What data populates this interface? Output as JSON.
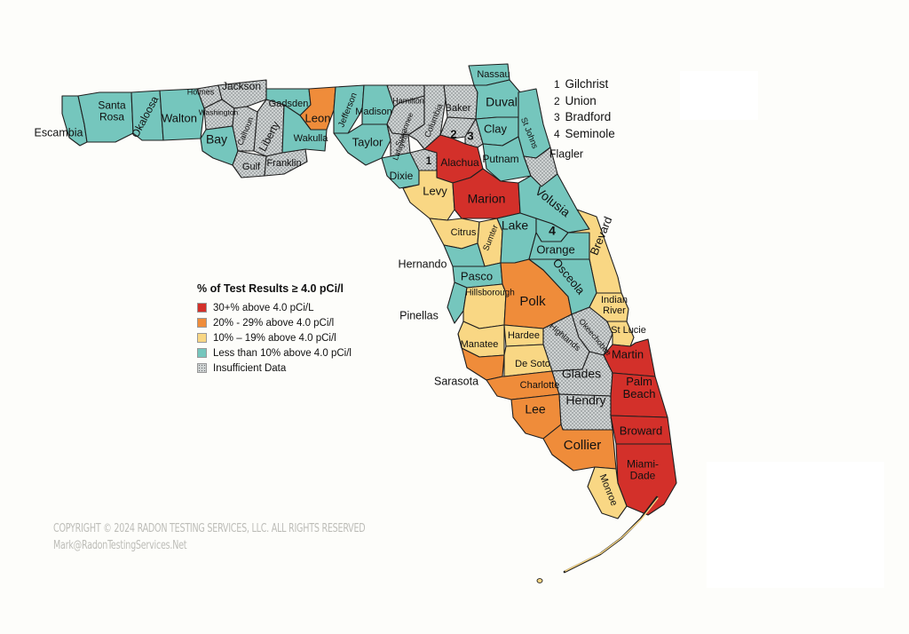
{
  "colors": {
    "high": "#d3302a",
    "medium": "#ef8c3a",
    "low": "#f9d784",
    "minimal": "#75c6bd",
    "insufficient": "#cfd3d3"
  },
  "legend": {
    "title": "% of Test Results ≥ 4.0 pCi/l",
    "items": [
      {
        "label": "30+% above 4.0 pCi/L",
        "color": "#d3302a",
        "pattern": false
      },
      {
        "label": "20% - 29% above 4.0 pCi/l",
        "color": "#ef8c3a",
        "pattern": false
      },
      {
        "label": "10% – 19% above 4.0 pCi/l",
        "color": "#f9d784",
        "pattern": false
      },
      {
        "label": "Less than 10% above 4.0 pCi/l",
        "color": "#75c6bd",
        "pattern": false
      },
      {
        "label": "Insufficient Data",
        "color": "#cfd3d3",
        "pattern": true
      }
    ]
  },
  "number_key": [
    {
      "num": "1",
      "name": "Gilchrist"
    },
    {
      "num": "2",
      "name": "Union"
    },
    {
      "num": "3",
      "name": "Bradford"
    },
    {
      "num": "4",
      "name": "Seminole"
    }
  ],
  "counties": [
    {
      "name": "Escambia",
      "cat": "minimal"
    },
    {
      "name": "Santa Rosa",
      "cat": "minimal"
    },
    {
      "name": "Okaloosa",
      "cat": "minimal"
    },
    {
      "name": "Walton",
      "cat": "minimal"
    },
    {
      "name": "Holmes",
      "cat": "insufficient"
    },
    {
      "name": "Washington",
      "cat": "insufficient"
    },
    {
      "name": "Jackson",
      "cat": "insufficient"
    },
    {
      "name": "Bay",
      "cat": "minimal"
    },
    {
      "name": "Calhoun",
      "cat": "insufficient"
    },
    {
      "name": "Liberty",
      "cat": "insufficient"
    },
    {
      "name": "Gulf",
      "cat": "insufficient"
    },
    {
      "name": "Franklin",
      "cat": "insufficient"
    },
    {
      "name": "Gadsden",
      "cat": "minimal"
    },
    {
      "name": "Leon",
      "cat": "medium"
    },
    {
      "name": "Wakulla",
      "cat": "minimal"
    },
    {
      "name": "Jefferson",
      "cat": "minimal"
    },
    {
      "name": "Madison",
      "cat": "minimal"
    },
    {
      "name": "Taylor",
      "cat": "minimal"
    },
    {
      "name": "Hamilton",
      "cat": "insufficient"
    },
    {
      "name": "Suwannee",
      "cat": "insufficient"
    },
    {
      "name": "Lafayette",
      "cat": "insufficient"
    },
    {
      "name": "Columbia",
      "cat": "insufficient"
    },
    {
      "name": "Baker",
      "cat": "insufficient"
    },
    {
      "name": "Nassau",
      "cat": "minimal"
    },
    {
      "name": "Duval",
      "cat": "minimal"
    },
    {
      "name": "Clay",
      "cat": "minimal"
    },
    {
      "name": "St Johns",
      "cat": "minimal"
    },
    {
      "name": "Putnam",
      "cat": "minimal"
    },
    {
      "name": "Flagler",
      "cat": "insufficient"
    },
    {
      "name": "Dixie",
      "cat": "minimal"
    },
    {
      "name": "Gilchrist",
      "cat": "insufficient"
    },
    {
      "name": "Union",
      "cat": "insufficient"
    },
    {
      "name": "Bradford",
      "cat": "insufficient"
    },
    {
      "name": "Alachua",
      "cat": "high"
    },
    {
      "name": "Levy",
      "cat": "low"
    },
    {
      "name": "Marion",
      "cat": "high"
    },
    {
      "name": "Volusia",
      "cat": "minimal"
    },
    {
      "name": "Citrus",
      "cat": "low"
    },
    {
      "name": "Sumter",
      "cat": "low"
    },
    {
      "name": "Lake",
      "cat": "minimal"
    },
    {
      "name": "Seminole",
      "cat": "minimal"
    },
    {
      "name": "Orange",
      "cat": "minimal"
    },
    {
      "name": "Brevard",
      "cat": "low"
    },
    {
      "name": "Hernando",
      "cat": "minimal"
    },
    {
      "name": "Pasco",
      "cat": "minimal"
    },
    {
      "name": "Pinellas",
      "cat": "minimal"
    },
    {
      "name": "Hillsborough",
      "cat": "low"
    },
    {
      "name": "Polk",
      "cat": "medium"
    },
    {
      "name": "Osceola",
      "cat": "minimal"
    },
    {
      "name": "Indian River",
      "cat": "low"
    },
    {
      "name": "Okeechobee",
      "cat": "insufficient"
    },
    {
      "name": "St Lucie",
      "cat": "low"
    },
    {
      "name": "Manatee",
      "cat": "low"
    },
    {
      "name": "Hardee",
      "cat": "low"
    },
    {
      "name": "Highlands",
      "cat": "insufficient"
    },
    {
      "name": "Sarasota",
      "cat": "medium"
    },
    {
      "name": "De Soto",
      "cat": "low"
    },
    {
      "name": "Charlotte",
      "cat": "medium"
    },
    {
      "name": "Glades",
      "cat": "insufficient"
    },
    {
      "name": "Martin",
      "cat": "high"
    },
    {
      "name": "Palm Beach",
      "cat": "high"
    },
    {
      "name": "Lee",
      "cat": "medium"
    },
    {
      "name": "Hendry",
      "cat": "insufficient"
    },
    {
      "name": "Collier",
      "cat": "medium"
    },
    {
      "name": "Broward",
      "cat": "high"
    },
    {
      "name": "Miami-Dade",
      "cat": "high"
    },
    {
      "name": "Monroe",
      "cat": "low"
    }
  ],
  "copyright": {
    "line1": "COPYRIGHT © 2024 RADON TESTING SERVICES, LLC. ALL RIGHTS RESERVED",
    "line2": "Mark@RadonTestingServices.Net"
  }
}
